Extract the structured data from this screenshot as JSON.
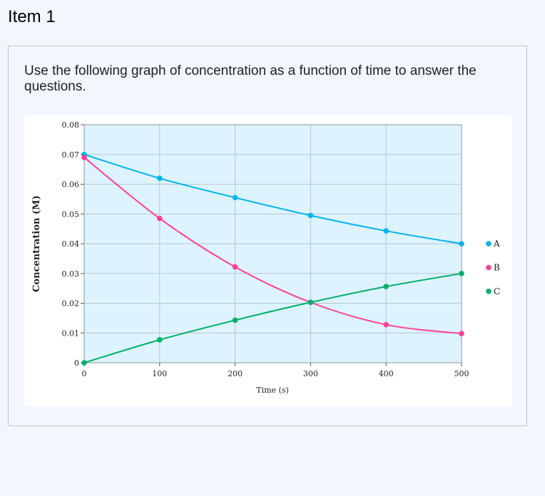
{
  "page": {
    "item_title": "Item 1",
    "question": "Use the following graph of concentration as a function of time to answer the questions."
  },
  "colors": {
    "A": "#00b4ef",
    "B": "#ff3f9a",
    "C": "#00b06a",
    "plot_bg": "#ddf3fd",
    "grid": "#b9c7cf"
  },
  "chart_data": {
    "type": "line",
    "title": "",
    "xlabel": "Time (s)",
    "ylabel": "Concentration (M)",
    "xlim": [
      0,
      500
    ],
    "ylim": [
      0,
      0.08
    ],
    "x_ticks": [
      "0",
      "100",
      "200",
      "300",
      "400",
      "500"
    ],
    "y_ticks": [
      "0",
      "0.01",
      "0.02",
      "0.03",
      "0.04",
      "0.05",
      "0.06",
      "0.07",
      "0.08"
    ],
    "grid": true,
    "legend_position": "right",
    "x": [
      0,
      100,
      200,
      300,
      400,
      500
    ],
    "series": [
      {
        "name": "A",
        "values": [
          0.07,
          0.062,
          0.0555,
          0.0495,
          0.0443,
          0.04
        ]
      },
      {
        "name": "B",
        "values": [
          0.069,
          0.0485,
          0.0322,
          0.0203,
          0.0128,
          0.0098
        ]
      },
      {
        "name": "C",
        "values": [
          0.0,
          0.0077,
          0.0143,
          0.0203,
          0.0256,
          0.03
        ]
      }
    ]
  }
}
